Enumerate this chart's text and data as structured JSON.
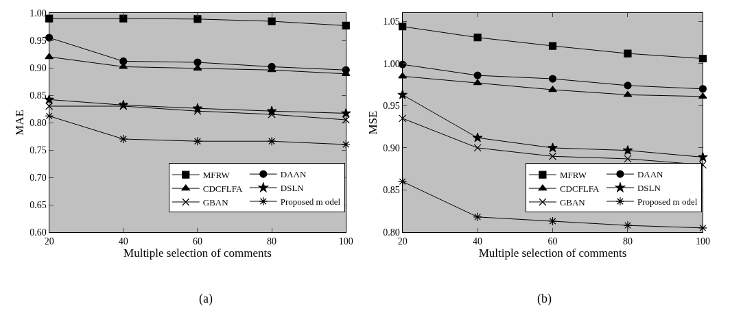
{
  "chart_data": [
    {
      "type": "line",
      "x": [
        20,
        40,
        60,
        80,
        100
      ],
      "xlim": [
        20,
        100
      ],
      "xticks": [
        20,
        40,
        60,
        80,
        100
      ],
      "ylim": [
        0.6,
        1.0
      ],
      "yticks": [
        {
          "value": 0.6,
          "label": "0.60"
        },
        {
          "value": 0.65,
          "label": "0.65"
        },
        {
          "value": 0.7,
          "label": "0.70"
        },
        {
          "value": 0.75,
          "label": "0.75"
        },
        {
          "value": 0.8,
          "label": "0.80"
        },
        {
          "value": 0.85,
          "label": "0.85"
        },
        {
          "value": 0.9,
          "label": "0.90"
        },
        {
          "value": 0.95,
          "label": "0.95"
        },
        {
          "value": 1.0,
          "label": "1.00"
        }
      ],
      "xlabel": "Multiple selection of comments",
      "ylabel": "MAE",
      "annotations": [
        "(a)"
      ],
      "grid": false,
      "legend": "bottom right",
      "line_style": "solid",
      "series": [
        {
          "name": "MFRW",
          "color": "#000000",
          "marker": "square",
          "values": [
            0.99,
            0.99,
            0.989,
            0.985,
            0.977
          ]
        },
        {
          "name": "DAAN",
          "color": "#000000",
          "marker": "circle",
          "values": [
            0.955,
            0.912,
            0.91,
            0.902,
            0.896
          ]
        },
        {
          "name": "CDCFLFA",
          "color": "#000000",
          "marker": "triangle",
          "values": [
            0.92,
            0.902,
            0.899,
            0.896,
            0.889
          ]
        },
        {
          "name": "DSLN",
          "color": "#000000",
          "marker": "star",
          "values": [
            0.842,
            0.832,
            0.826,
            0.821,
            0.817
          ]
        },
        {
          "name": "GBAN",
          "color": "#000000",
          "marker": "cross",
          "values": [
            0.83,
            0.83,
            0.821,
            0.815,
            0.805
          ]
        },
        {
          "name": "Proposed m odel",
          "color": "#000000",
          "marker": "cross",
          "values": [
            0.812,
            0.77,
            0.766,
            0.766,
            0.76
          ]
        }
      ]
    },
    {
      "type": "line",
      "x": [
        20,
        40,
        60,
        80,
        100
      ],
      "xlim": [
        20,
        100
      ],
      "xticks": [
        20,
        40,
        60,
        80,
        100
      ],
      "ylim": [
        0.8,
        1.06
      ],
      "yticks": [
        {
          "value": 0.8,
          "label": "0.80"
        },
        {
          "value": 0.85,
          "label": "0.85"
        },
        {
          "value": 0.9,
          "label": "0.90"
        },
        {
          "value": 0.95,
          "label": "0.95"
        },
        {
          "value": 1.0,
          "label": "1.00"
        },
        {
          "value": 1.05,
          "label": "1.05"
        }
      ],
      "xlabel": "Multiple selection of comments",
      "ylabel": "MSE",
      "annotations": [
        "(b)"
      ],
      "grid": false,
      "legend": "bottom right",
      "line_style": "solid",
      "series": [
        {
          "name": "MFRW",
          "color": "#000000",
          "marker": "square",
          "values": [
            1.044,
            1.031,
            1.021,
            1.012,
            1.006
          ]
        },
        {
          "name": "DAAN",
          "color": "#000000",
          "marker": "circle",
          "values": [
            0.999,
            0.986,
            0.982,
            0.974,
            0.97
          ]
        },
        {
          "name": "CDCFLFA",
          "color": "#000000",
          "marker": "triangle",
          "values": [
            0.985,
            0.977,
            0.969,
            0.963,
            0.961
          ]
        },
        {
          "name": "DSLN",
          "color": "#000000",
          "marker": "star",
          "values": [
            0.963,
            0.912,
            0.9,
            0.897,
            0.889
          ]
        },
        {
          "name": "GBAN",
          "color": "#000000",
          "marker": "cross",
          "values": [
            0.935,
            0.9,
            0.89,
            0.887,
            0.88
          ]
        },
        {
          "name": "Proposed m odel",
          "color": "#000000",
          "marker": "cross",
          "values": [
            0.86,
            0.818,
            0.813,
            0.808,
            0.805
          ]
        }
      ]
    }
  ]
}
